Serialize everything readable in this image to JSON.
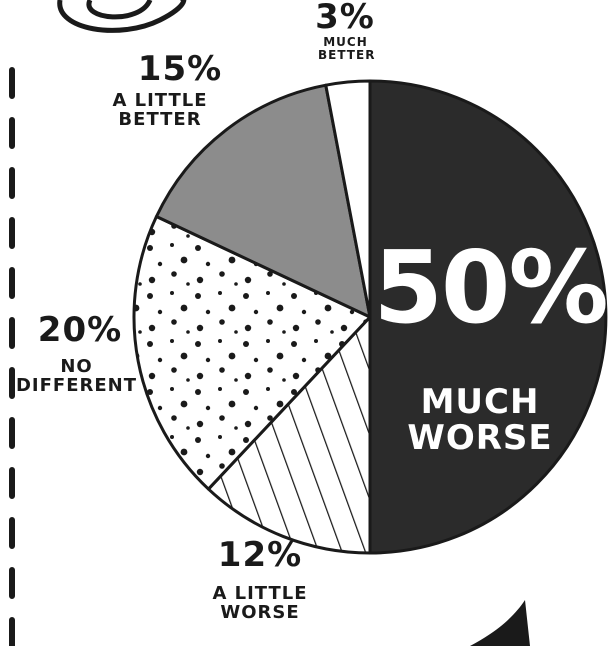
{
  "chart_data": {
    "type": "pie",
    "categories": [
      "MUCH WORSE",
      "A LITTLE WORSE",
      "NO DIFFERENT",
      "A LITTLE BETTER",
      "MUCH BETTER"
    ],
    "values": [
      50,
      12,
      20,
      15,
      3
    ],
    "value_labels": [
      "50%",
      "12%",
      "20%",
      "15%",
      "3%"
    ],
    "colors": [
      "#2b2b2b",
      "#ffffff",
      "#ffffff",
      "#8c8c8c",
      "#ffffff"
    ],
    "fills": [
      "solid",
      "hatch",
      "dots",
      "solid",
      "solid"
    ]
  }
}
